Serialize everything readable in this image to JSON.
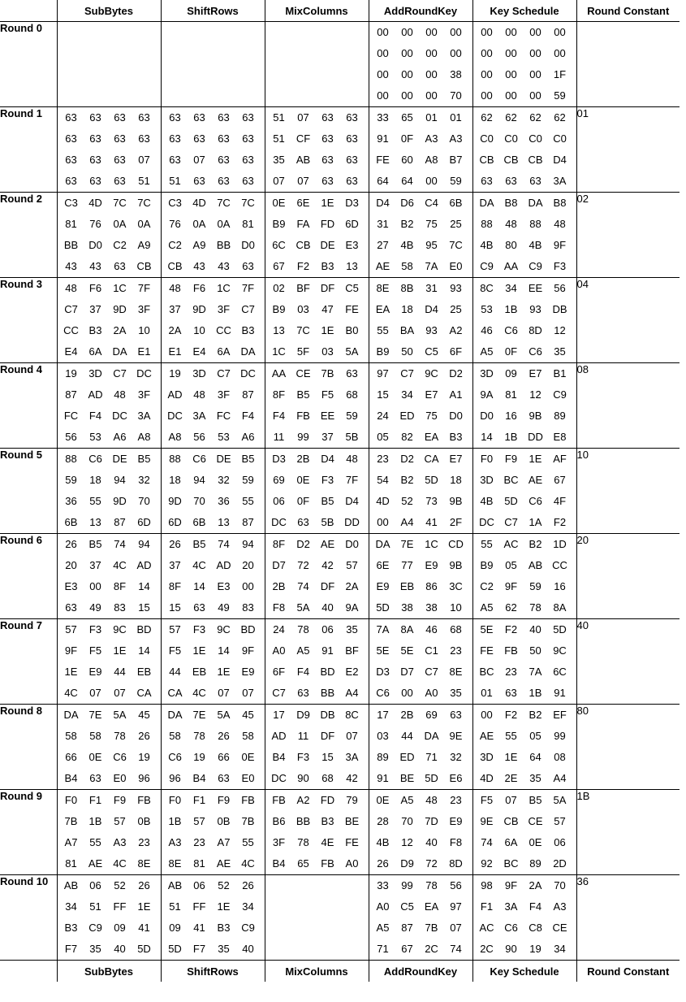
{
  "headers": [
    "SubBytes",
    "ShiftRows",
    "MixColumns",
    "AddRoundKey",
    "Key Schedule",
    "Round Constant"
  ],
  "rounds": [
    {
      "label": "Round 0",
      "steps": [
        [],
        [],
        [],
        [
          "00",
          "00",
          "00",
          "00",
          "00",
          "00",
          "00",
          "00",
          "00",
          "00",
          "00",
          "38",
          "00",
          "00",
          "00",
          "70"
        ],
        [
          "00",
          "00",
          "00",
          "00",
          "00",
          "00",
          "00",
          "00",
          "00",
          "00",
          "00",
          "1F",
          "00",
          "00",
          "00",
          "59"
        ]
      ],
      "rcon": ""
    },
    {
      "label": "Round 1",
      "steps": [
        [
          "63",
          "63",
          "63",
          "63",
          "63",
          "63",
          "63",
          "63",
          "63",
          "63",
          "63",
          "07",
          "63",
          "63",
          "63",
          "51"
        ],
        [
          "63",
          "63",
          "63",
          "63",
          "63",
          "63",
          "63",
          "63",
          "63",
          "07",
          "63",
          "63",
          "51",
          "63",
          "63",
          "63"
        ],
        [
          "51",
          "07",
          "63",
          "63",
          "51",
          "CF",
          "63",
          "63",
          "35",
          "AB",
          "63",
          "63",
          "07",
          "07",
          "63",
          "63"
        ],
        [
          "33",
          "65",
          "01",
          "01",
          "91",
          "0F",
          "A3",
          "A3",
          "FE",
          "60",
          "A8",
          "B7",
          "64",
          "64",
          "00",
          "59"
        ],
        [
          "62",
          "62",
          "62",
          "62",
          "C0",
          "C0",
          "C0",
          "C0",
          "CB",
          "CB",
          "CB",
          "D4",
          "63",
          "63",
          "63",
          "3A"
        ]
      ],
      "rcon": "01"
    },
    {
      "label": "Round 2",
      "steps": [
        [
          "C3",
          "4D",
          "7C",
          "7C",
          "81",
          "76",
          "0A",
          "0A",
          "BB",
          "D0",
          "C2",
          "A9",
          "43",
          "43",
          "63",
          "CB"
        ],
        [
          "C3",
          "4D",
          "7C",
          "7C",
          "76",
          "0A",
          "0A",
          "81",
          "C2",
          "A9",
          "BB",
          "D0",
          "CB",
          "43",
          "43",
          "63"
        ],
        [
          "0E",
          "6E",
          "1E",
          "D3",
          "B9",
          "FA",
          "FD",
          "6D",
          "6C",
          "CB",
          "DE",
          "E3",
          "67",
          "F2",
          "B3",
          "13"
        ],
        [
          "D4",
          "D6",
          "C4",
          "6B",
          "31",
          "B2",
          "75",
          "25",
          "27",
          "4B",
          "95",
          "7C",
          "AE",
          "58",
          "7A",
          "E0"
        ],
        [
          "DA",
          "B8",
          "DA",
          "B8",
          "88",
          "48",
          "88",
          "48",
          "4B",
          "80",
          "4B",
          "9F",
          "C9",
          "AA",
          "C9",
          "F3"
        ]
      ],
      "rcon": "02"
    },
    {
      "label": "Round 3",
      "steps": [
        [
          "48",
          "F6",
          "1C",
          "7F",
          "C7",
          "37",
          "9D",
          "3F",
          "CC",
          "B3",
          "2A",
          "10",
          "E4",
          "6A",
          "DA",
          "E1"
        ],
        [
          "48",
          "F6",
          "1C",
          "7F",
          "37",
          "9D",
          "3F",
          "C7",
          "2A",
          "10",
          "CC",
          "B3",
          "E1",
          "E4",
          "6A",
          "DA"
        ],
        [
          "02",
          "BF",
          "DF",
          "C5",
          "B9",
          "03",
          "47",
          "FE",
          "13",
          "7C",
          "1E",
          "B0",
          "1C",
          "5F",
          "03",
          "5A"
        ],
        [
          "8E",
          "8B",
          "31",
          "93",
          "EA",
          "18",
          "D4",
          "25",
          "55",
          "BA",
          "93",
          "A2",
          "B9",
          "50",
          "C5",
          "6F"
        ],
        [
          "8C",
          "34",
          "EE",
          "56",
          "53",
          "1B",
          "93",
          "DB",
          "46",
          "C6",
          "8D",
          "12",
          "A5",
          "0F",
          "C6",
          "35"
        ]
      ],
      "rcon": "04"
    },
    {
      "label": "Round 4",
      "steps": [
        [
          "19",
          "3D",
          "C7",
          "DC",
          "87",
          "AD",
          "48",
          "3F",
          "FC",
          "F4",
          "DC",
          "3A",
          "56",
          "53",
          "A6",
          "A8"
        ],
        [
          "19",
          "3D",
          "C7",
          "DC",
          "AD",
          "48",
          "3F",
          "87",
          "DC",
          "3A",
          "FC",
          "F4",
          "A8",
          "56",
          "53",
          "A6"
        ],
        [
          "AA",
          "CE",
          "7B",
          "63",
          "8F",
          "B5",
          "F5",
          "68",
          "F4",
          "FB",
          "EE",
          "59",
          "11",
          "99",
          "37",
          "5B"
        ],
        [
          "97",
          "C7",
          "9C",
          "D2",
          "15",
          "34",
          "E7",
          "A1",
          "24",
          "ED",
          "75",
          "D0",
          "05",
          "82",
          "EA",
          "B3"
        ],
        [
          "3D",
          "09",
          "E7",
          "B1",
          "9A",
          "81",
          "12",
          "C9",
          "D0",
          "16",
          "9B",
          "89",
          "14",
          "1B",
          "DD",
          "E8"
        ]
      ],
      "rcon": "08"
    },
    {
      "label": "Round 5",
      "steps": [
        [
          "88",
          "C6",
          "DE",
          "B5",
          "59",
          "18",
          "94",
          "32",
          "36",
          "55",
          "9D",
          "70",
          "6B",
          "13",
          "87",
          "6D"
        ],
        [
          "88",
          "C6",
          "DE",
          "B5",
          "18",
          "94",
          "32",
          "59",
          "9D",
          "70",
          "36",
          "55",
          "6D",
          "6B",
          "13",
          "87"
        ],
        [
          "D3",
          "2B",
          "D4",
          "48",
          "69",
          "0E",
          "F3",
          "7F",
          "06",
          "0F",
          "B5",
          "D4",
          "DC",
          "63",
          "5B",
          "DD"
        ],
        [
          "23",
          "D2",
          "CA",
          "E7",
          "54",
          "B2",
          "5D",
          "18",
          "4D",
          "52",
          "73",
          "9B",
          "00",
          "A4",
          "41",
          "2F"
        ],
        [
          "F0",
          "F9",
          "1E",
          "AF",
          "3D",
          "BC",
          "AE",
          "67",
          "4B",
          "5D",
          "C6",
          "4F",
          "DC",
          "C7",
          "1A",
          "F2"
        ]
      ],
      "rcon": "10"
    },
    {
      "label": "Round 6",
      "steps": [
        [
          "26",
          "B5",
          "74",
          "94",
          "20",
          "37",
          "4C",
          "AD",
          "E3",
          "00",
          "8F",
          "14",
          "63",
          "49",
          "83",
          "15"
        ],
        [
          "26",
          "B5",
          "74",
          "94",
          "37",
          "4C",
          "AD",
          "20",
          "8F",
          "14",
          "E3",
          "00",
          "15",
          "63",
          "49",
          "83"
        ],
        [
          "8F",
          "D2",
          "AE",
          "D0",
          "D7",
          "72",
          "42",
          "57",
          "2B",
          "74",
          "DF",
          "2A",
          "F8",
          "5A",
          "40",
          "9A"
        ],
        [
          "DA",
          "7E",
          "1C",
          "CD",
          "6E",
          "77",
          "E9",
          "9B",
          "E9",
          "EB",
          "86",
          "3C",
          "5D",
          "38",
          "38",
          "10"
        ],
        [
          "55",
          "AC",
          "B2",
          "1D",
          "B9",
          "05",
          "AB",
          "CC",
          "C2",
          "9F",
          "59",
          "16",
          "A5",
          "62",
          "78",
          "8A"
        ]
      ],
      "rcon": "20"
    },
    {
      "label": "Round 7",
      "steps": [
        [
          "57",
          "F3",
          "9C",
          "BD",
          "9F",
          "F5",
          "1E",
          "14",
          "1E",
          "E9",
          "44",
          "EB",
          "4C",
          "07",
          "07",
          "CA"
        ],
        [
          "57",
          "F3",
          "9C",
          "BD",
          "F5",
          "1E",
          "14",
          "9F",
          "44",
          "EB",
          "1E",
          "E9",
          "CA",
          "4C",
          "07",
          "07"
        ],
        [
          "24",
          "78",
          "06",
          "35",
          "A0",
          "A5",
          "91",
          "BF",
          "6F",
          "F4",
          "BD",
          "E2",
          "C7",
          "63",
          "BB",
          "A4"
        ],
        [
          "7A",
          "8A",
          "46",
          "68",
          "5E",
          "5E",
          "C1",
          "23",
          "D3",
          "D7",
          "C7",
          "8E",
          "C6",
          "00",
          "A0",
          "35"
        ],
        [
          "5E",
          "F2",
          "40",
          "5D",
          "FE",
          "FB",
          "50",
          "9C",
          "BC",
          "23",
          "7A",
          "6C",
          "01",
          "63",
          "1B",
          "91"
        ]
      ],
      "rcon": "40"
    },
    {
      "label": "Round 8",
      "steps": [
        [
          "DA",
          "7E",
          "5A",
          "45",
          "58",
          "58",
          "78",
          "26",
          "66",
          "0E",
          "C6",
          "19",
          "B4",
          "63",
          "E0",
          "96"
        ],
        [
          "DA",
          "7E",
          "5A",
          "45",
          "58",
          "78",
          "26",
          "58",
          "C6",
          "19",
          "66",
          "0E",
          "96",
          "B4",
          "63",
          "E0"
        ],
        [
          "17",
          "D9",
          "DB",
          "8C",
          "AD",
          "11",
          "DF",
          "07",
          "B4",
          "F3",
          "15",
          "3A",
          "DC",
          "90",
          "68",
          "42"
        ],
        [
          "17",
          "2B",
          "69",
          "63",
          "03",
          "44",
          "DA",
          "9E",
          "89",
          "ED",
          "71",
          "32",
          "91",
          "BE",
          "5D",
          "E6"
        ],
        [
          "00",
          "F2",
          "B2",
          "EF",
          "AE",
          "55",
          "05",
          "99",
          "3D",
          "1E",
          "64",
          "08",
          "4D",
          "2E",
          "35",
          "A4"
        ]
      ],
      "rcon": "80"
    },
    {
      "label": "Round 9",
      "steps": [
        [
          "F0",
          "F1",
          "F9",
          "FB",
          "7B",
          "1B",
          "57",
          "0B",
          "A7",
          "55",
          "A3",
          "23",
          "81",
          "AE",
          "4C",
          "8E"
        ],
        [
          "F0",
          "F1",
          "F9",
          "FB",
          "1B",
          "57",
          "0B",
          "7B",
          "A3",
          "23",
          "A7",
          "55",
          "8E",
          "81",
          "AE",
          "4C"
        ],
        [
          "FB",
          "A2",
          "FD",
          "79",
          "B6",
          "BB",
          "B3",
          "BE",
          "3F",
          "78",
          "4E",
          "FE",
          "B4",
          "65",
          "FB",
          "A0"
        ],
        [
          "0E",
          "A5",
          "48",
          "23",
          "28",
          "70",
          "7D",
          "E9",
          "4B",
          "12",
          "40",
          "F8",
          "26",
          "D9",
          "72",
          "8D"
        ],
        [
          "F5",
          "07",
          "B5",
          "5A",
          "9E",
          "CB",
          "CE",
          "57",
          "74",
          "6A",
          "0E",
          "06",
          "92",
          "BC",
          "89",
          "2D"
        ]
      ],
      "rcon": "1B"
    },
    {
      "label": "Round 10",
      "steps": [
        [
          "AB",
          "06",
          "52",
          "26",
          "34",
          "51",
          "FF",
          "1E",
          "B3",
          "C9",
          "09",
          "41",
          "F7",
          "35",
          "40",
          "5D"
        ],
        [
          "AB",
          "06",
          "52",
          "26",
          "51",
          "FF",
          "1E",
          "34",
          "09",
          "41",
          "B3",
          "C9",
          "5D",
          "F7",
          "35",
          "40"
        ],
        [],
        [
          "33",
          "99",
          "78",
          "56",
          "A0",
          "C5",
          "EA",
          "97",
          "A5",
          "87",
          "7B",
          "07",
          "71",
          "67",
          "2C",
          "74"
        ],
        [
          "98",
          "9F",
          "2A",
          "70",
          "F1",
          "3A",
          "F4",
          "A3",
          "AC",
          "C6",
          "C8",
          "CE",
          "2C",
          "90",
          "19",
          "34"
        ]
      ],
      "rcon": "36"
    }
  ]
}
